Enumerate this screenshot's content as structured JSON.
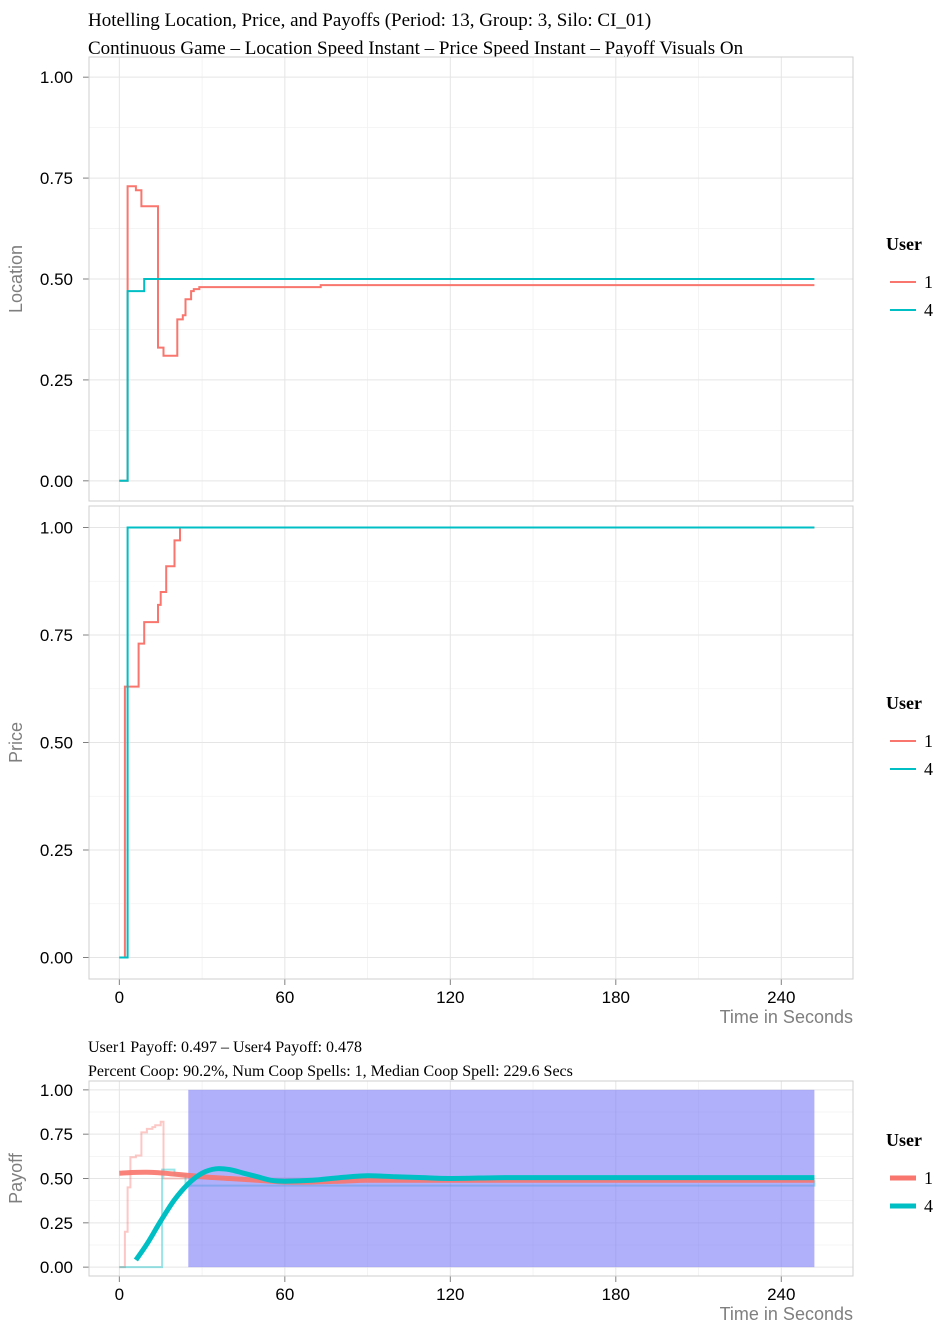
{
  "header": {
    "title_line1": "Hotelling Location, Price, and Payoffs (Period: 13, Group: 3, Silo: CI_01)",
    "title_line2": "Continuous Game – Location Speed Instant – Price Speed Instant – Payoff Visuals On"
  },
  "colors": {
    "user1": "#F8766D",
    "user4": "#00BFC4",
    "coop_band": "#7b7bf7",
    "panel_bg": "#ffffff",
    "grid": "#e5e5e5",
    "frame": "#cfcfcf"
  },
  "legend": {
    "title": "User",
    "labels": [
      "1",
      "4"
    ]
  },
  "payoff_info": {
    "line1": "User1 Payoff: 0.497 – User4 Payoff: 0.478",
    "line2": "Percent Coop: 90.2%, Num Coop Spells: 1, Median Coop Spell: 229.6 Secs"
  },
  "chart_data": [
    {
      "type": "line",
      "step": true,
      "ylabel": "Location",
      "xlim": [
        -11,
        266
      ],
      "ylim": [
        -0.05,
        1.05
      ],
      "y_ticks": [
        "0.00",
        "0.25",
        "0.50",
        "0.75",
        "1.00"
      ],
      "y_tick_values": [
        0,
        0.25,
        0.5,
        0.75,
        1.0
      ],
      "series": [
        {
          "name": "1",
          "x": [
            0,
            1.5,
            3,
            6,
            8,
            14,
            14,
            16,
            20,
            21,
            23,
            24,
            26,
            27,
            29,
            72,
            73,
            252
          ],
          "y": [
            0,
            0,
            0.73,
            0.72,
            0.68,
            0.68,
            0.33,
            0.31,
            0.31,
            0.4,
            0.41,
            0.45,
            0.47,
            0.475,
            0.48,
            0.48,
            0.485,
            0.485
          ]
        },
        {
          "name": "4",
          "x": [
            0,
            3,
            9,
            252
          ],
          "y": [
            0,
            0.47,
            0.5,
            0.5
          ]
        }
      ]
    },
    {
      "type": "line",
      "step": true,
      "xlabel": "Time in Seconds",
      "ylabel": "Price",
      "xlim": [
        -11,
        266
      ],
      "ylim": [
        -0.05,
        1.05
      ],
      "x_ticks": [
        "0",
        "60",
        "120",
        "180",
        "240"
      ],
      "x_tick_values": [
        0,
        60,
        120,
        180,
        240
      ],
      "y_ticks": [
        "0.00",
        "0.25",
        "0.50",
        "0.75",
        "1.00"
      ],
      "y_tick_values": [
        0,
        0.25,
        0.5,
        0.75,
        1.0
      ],
      "series": [
        {
          "name": "1",
          "x": [
            0,
            2,
            7,
            9,
            14,
            15,
            17,
            20,
            22,
            252
          ],
          "y": [
            0,
            0.63,
            0.73,
            0.78,
            0.82,
            0.85,
            0.91,
            0.97,
            1.0,
            1.0
          ],
          "lead_x": [
            0,
            2
          ]
        },
        {
          "name": "4",
          "x": [
            0,
            3,
            252
          ],
          "y": [
            0,
            1.0,
            1.0
          ]
        }
      ]
    },
    {
      "type": "line",
      "xlabel": "Time in Seconds",
      "ylabel": "Payoff",
      "xlim": [
        -11,
        266
      ],
      "ylim": [
        -0.05,
        1.05
      ],
      "x_ticks": [
        "0",
        "60",
        "120",
        "180",
        "240"
      ],
      "x_tick_values": [
        0,
        60,
        120,
        180,
        240
      ],
      "y_ticks": [
        "0.00",
        "0.25",
        "0.50",
        "0.75",
        "1.00"
      ],
      "y_tick_values": [
        0,
        0.25,
        0.5,
        0.75,
        1.0
      ],
      "coop_band": {
        "x_start": 25,
        "x_end": 252,
        "y_start": 0,
        "y_end": 1.0
      },
      "raw_series": [
        {
          "name": "1",
          "x": [
            0,
            2,
            3,
            4,
            6,
            8,
            10,
            12,
            13,
            15,
            16,
            252
          ],
          "y": [
            0,
            0.2,
            0.45,
            0.62,
            0.63,
            0.76,
            0.78,
            0.79,
            0.8,
            0.82,
            0.5,
            0.5
          ]
        },
        {
          "name": "4",
          "x": [
            0,
            15,
            15.5,
            20,
            24,
            252
          ],
          "y": [
            0,
            0,
            0.55,
            0.52,
            0.46,
            0.49
          ]
        }
      ],
      "smooth_series": [
        {
          "name": "1",
          "x": [
            0,
            10,
            20,
            30,
            40,
            50,
            60,
            70,
            80,
            90,
            100,
            110,
            120,
            140,
            160,
            180,
            200,
            220,
            240,
            252
          ],
          "y": [
            0.53,
            0.535,
            0.525,
            0.51,
            0.5,
            0.49,
            0.48,
            0.48,
            0.485,
            0.49,
            0.49,
            0.49,
            0.49,
            0.49,
            0.49,
            0.49,
            0.49,
            0.49,
            0.49,
            0.49
          ]
        },
        {
          "name": "4",
          "x": [
            6,
            10,
            15,
            20,
            25,
            30,
            35,
            40,
            45,
            50,
            55,
            60,
            70,
            80,
            90,
            100,
            110,
            120,
            140,
            160,
            180,
            200,
            220,
            240,
            252
          ],
          "y": [
            0.04,
            0.13,
            0.26,
            0.38,
            0.47,
            0.53,
            0.555,
            0.55,
            0.53,
            0.51,
            0.49,
            0.485,
            0.49,
            0.505,
            0.515,
            0.51,
            0.505,
            0.5,
            0.505,
            0.505,
            0.505,
            0.505,
            0.505,
            0.505,
            0.505
          ]
        }
      ]
    }
  ]
}
